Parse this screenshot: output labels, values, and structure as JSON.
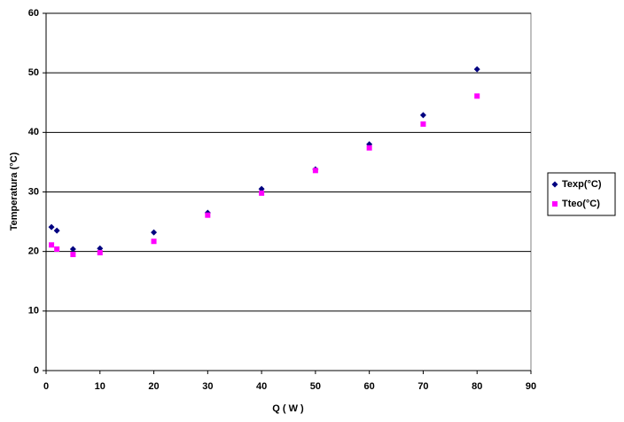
{
  "chart_data": {
    "type": "scatter",
    "x_label": "Q ( W )",
    "y_label": "Temperatura (°C)",
    "x": [
      1,
      2,
      5,
      10,
      20,
      30,
      40,
      50,
      60,
      70,
      80
    ],
    "series": [
      {
        "name": "Texp(°C)",
        "color": "#000080",
        "marker": "diamond",
        "values": [
          24.1,
          23.5,
          20.4,
          20.5,
          23.2,
          26.5,
          30.5,
          33.8,
          38.0,
          42.9,
          50.6
        ]
      },
      {
        "name": "Tteo(°C)",
        "color": "#ff00ff",
        "marker": "square",
        "values": [
          21.1,
          20.4,
          19.5,
          19.8,
          21.7,
          26.1,
          29.8,
          33.6,
          37.4,
          41.4,
          46.1
        ]
      }
    ],
    "xlim": [
      0,
      90
    ],
    "xticks": [
      0,
      10,
      20,
      30,
      40,
      50,
      60,
      70,
      80,
      90
    ],
    "ylim": [
      0,
      60
    ],
    "yticks": [
      0,
      10,
      20,
      30,
      40,
      50,
      60
    ],
    "grid": true,
    "legend": "right"
  }
}
